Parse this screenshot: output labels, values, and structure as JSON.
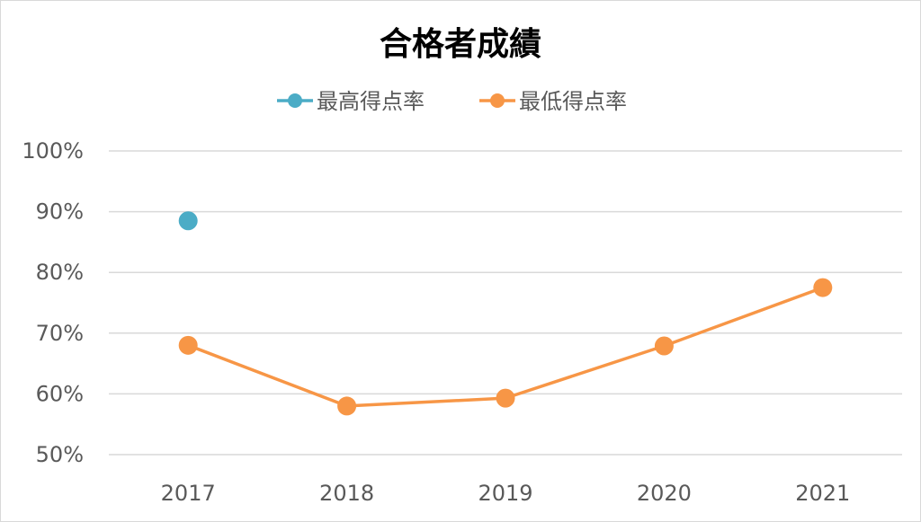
{
  "chart_data": {
    "type": "line",
    "title": "合格者成績",
    "categories": [
      "2017",
      "2018",
      "2019",
      "2020",
      "2021"
    ],
    "series": [
      {
        "name": "最高得点率",
        "color": "#4bacc6",
        "values": [
          0.885,
          null,
          null,
          null,
          null
        ]
      },
      {
        "name": "最低得点率",
        "color": "#f79646",
        "values": [
          0.68,
          0.58,
          0.593,
          0.679,
          0.775
        ]
      }
    ],
    "ylim": [
      0.5,
      1.0
    ],
    "yticks": [
      0.5,
      0.6,
      0.7,
      0.8,
      0.9,
      1.0
    ],
    "ytick_labels": [
      "50%",
      "60%",
      "70%",
      "80%",
      "90%",
      "100%"
    ],
    "grid": true,
    "legend_position": "top"
  }
}
